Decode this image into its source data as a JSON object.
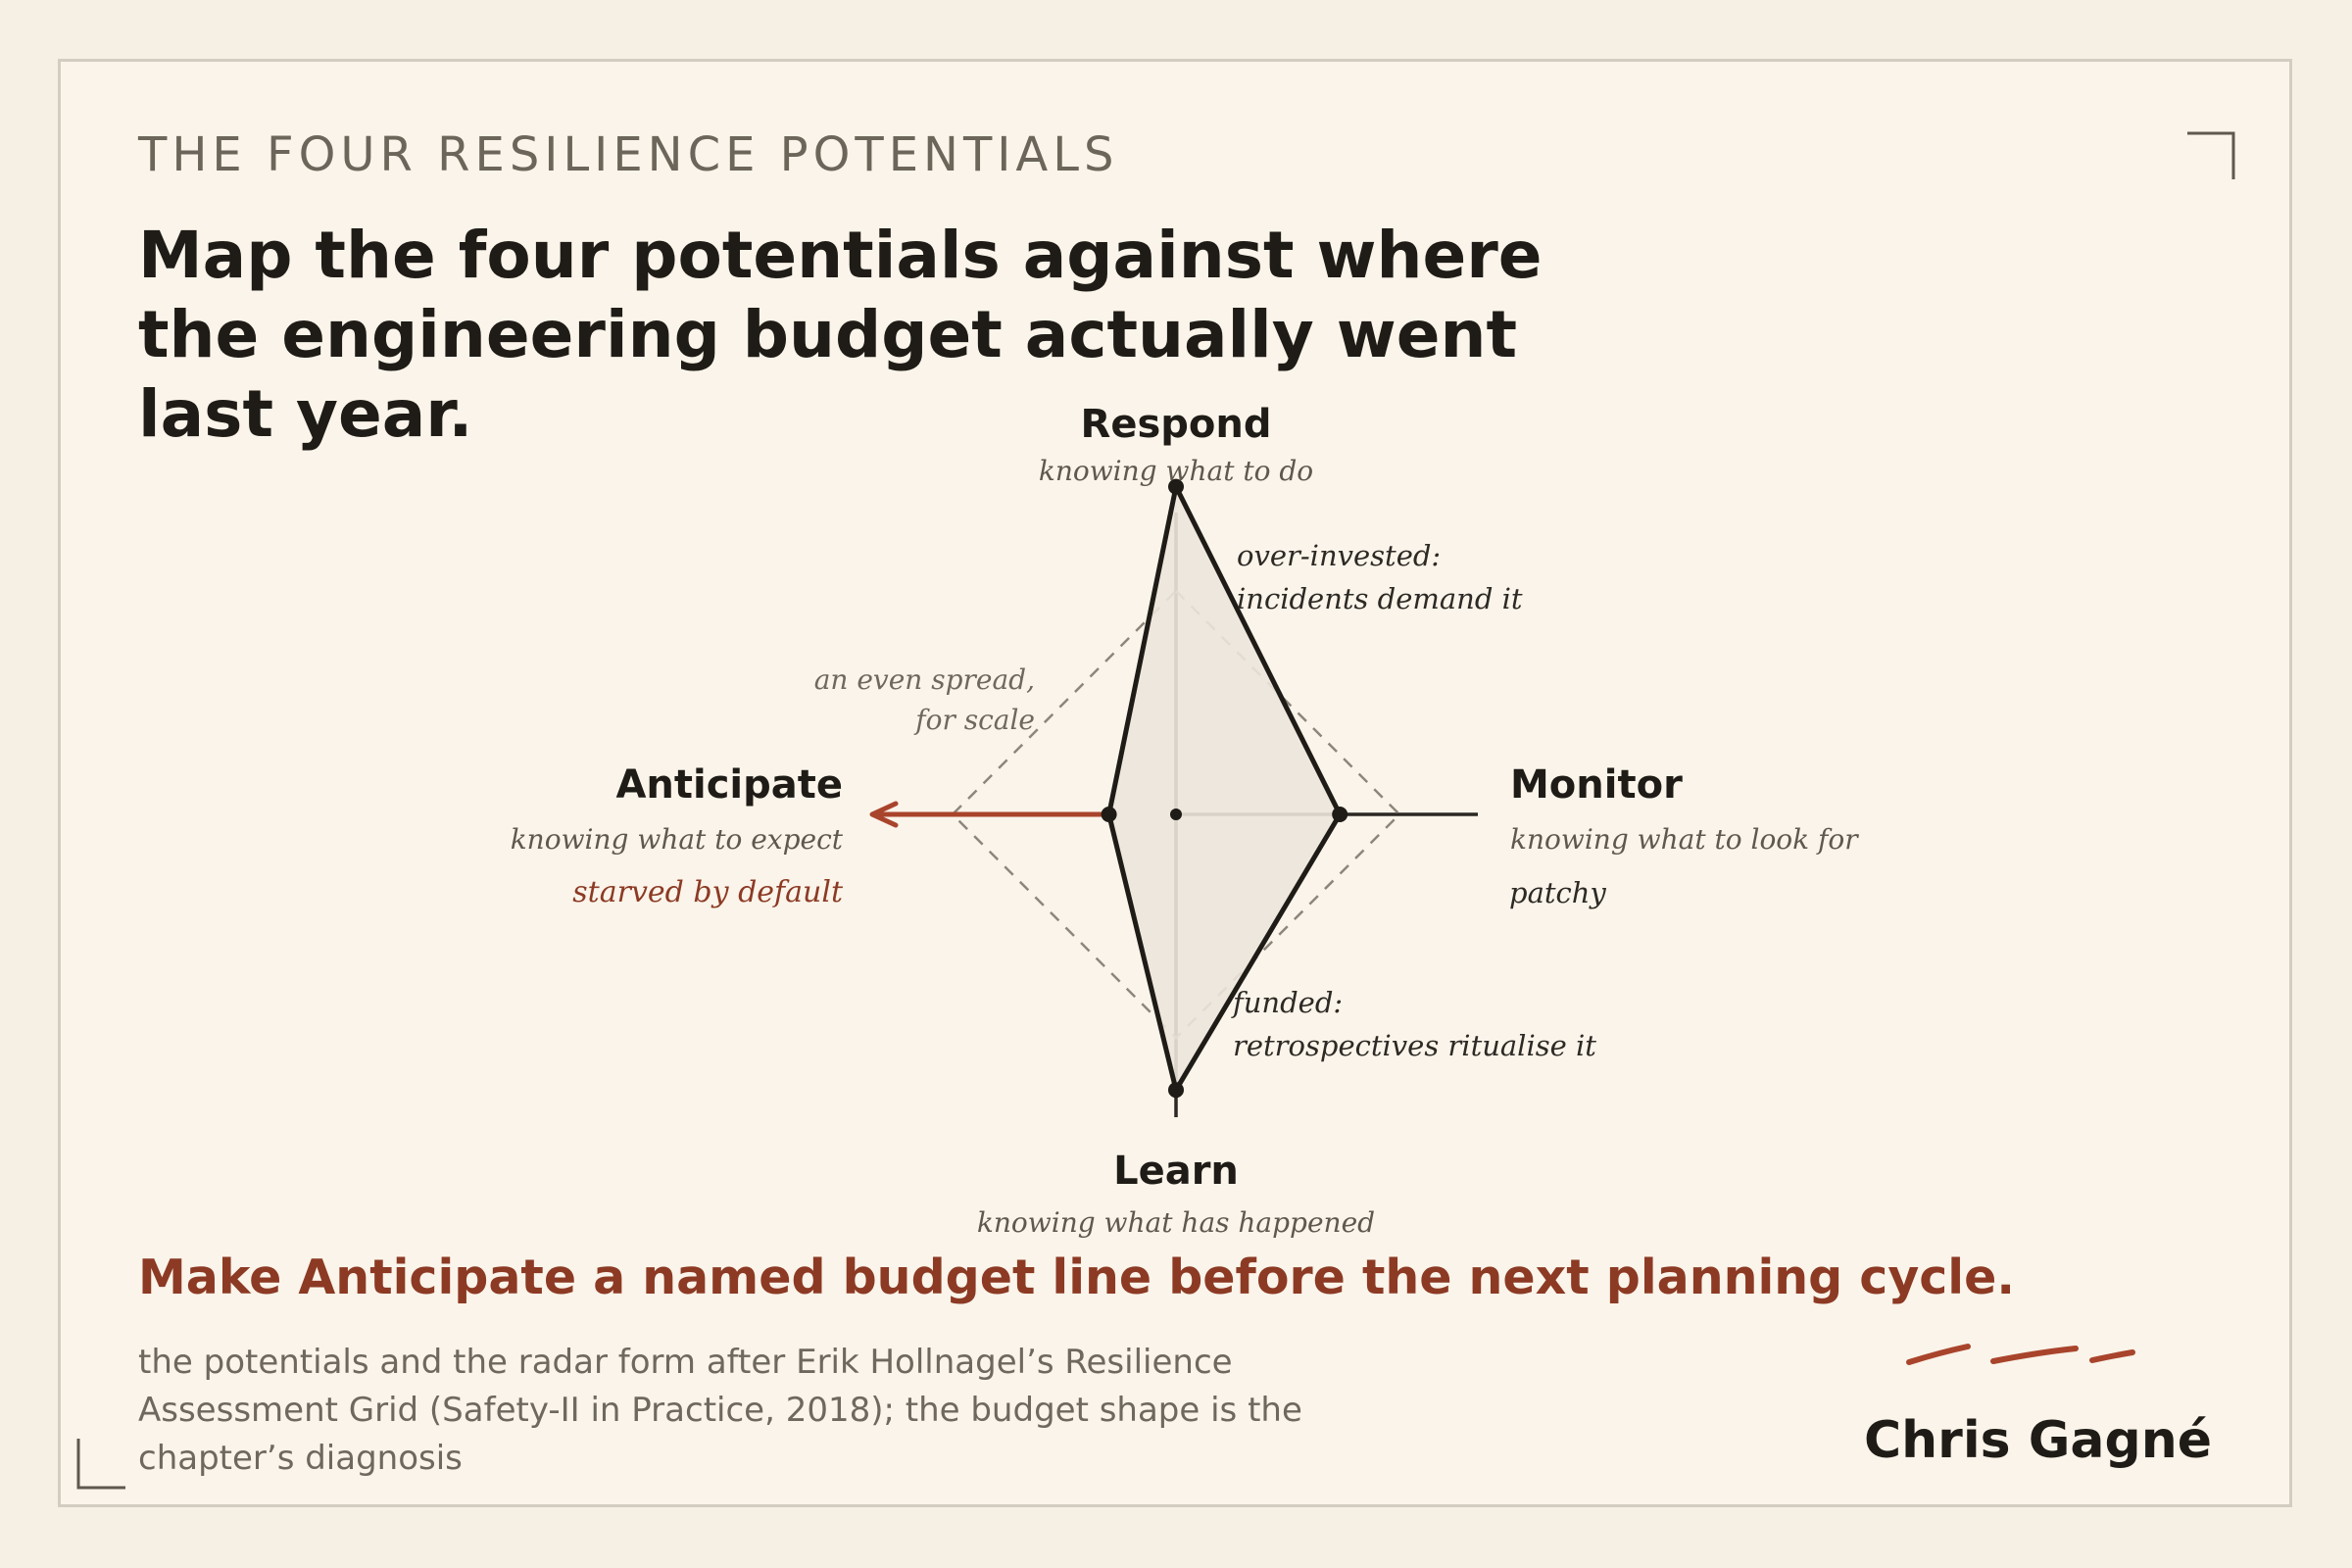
{
  "eyebrow": "THE FOUR RESILIENCE POTENTIALS",
  "headline": "Map the four potentials against where the engineering budget actually went last year.",
  "axes": {
    "respond": {
      "title": "Respond",
      "subtitle": "knowing what to do"
    },
    "monitor": {
      "title": "Monitor",
      "subtitle": "knowing what to look for",
      "status": "patchy"
    },
    "learn": {
      "title": "Learn",
      "subtitle": "knowing what has happened"
    },
    "anticipate": {
      "title": "Anticipate",
      "subtitle": "knowing what to expect",
      "status": "starved by default"
    }
  },
  "annotations": {
    "respond_line1": "over-invested:",
    "respond_line2": "incidents demand it",
    "learn_line1": "funded:",
    "learn_line2": "retrospectives ritualise it",
    "reference_line1": "an even spread,",
    "reference_line2": "for scale"
  },
  "chart_data": {
    "type": "radar",
    "axes": [
      "Respond",
      "Monitor",
      "Learn",
      "Anticipate"
    ],
    "budget_shape": [
      0.88,
      0.44,
      0.74,
      0.18
    ],
    "reference_spread": [
      0.6,
      0.6,
      0.6,
      0.6
    ],
    "accent": "#a9442c"
  },
  "cta": "Make Anticipate a named budget line before the next planning cycle.",
  "source_line1": "the potentials and the radar form after Erik Hollnagel’s Resilience",
  "source_line2": "Assessment Grid (Safety-II in Practice, 2018); the budget shape is the",
  "source_line3": "chapter’s diagnosis",
  "author": "Chris Gagné"
}
